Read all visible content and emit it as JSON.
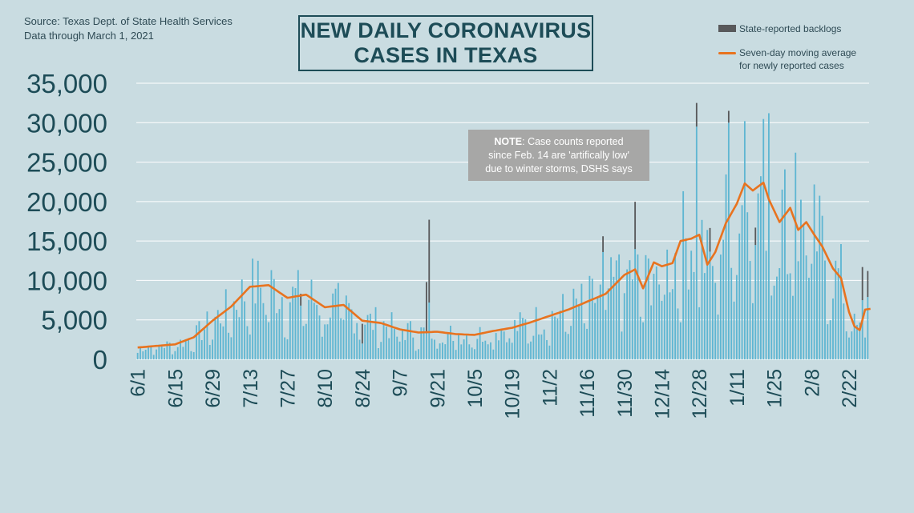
{
  "source": {
    "line1": "Source: Texas Dept. of State Health Services",
    "line2": "Data through  March 1, 2021"
  },
  "title": {
    "line1": "NEW DAILY CORONAVIRUS",
    "line2": "CASES IN TEXAS"
  },
  "legend": {
    "backlog_label": "State-reported backlogs",
    "average_label_line1": "Seven-day moving average",
    "average_label_line2": "for newly reported cases"
  },
  "note": {
    "bold": "NOTE",
    "line1_rest": ": Case counts reported",
    "line2": "since Feb. 14 are 'artifically low'",
    "line3": "due to winter storms, DSHS says"
  },
  "colors": {
    "background": "#c9dce1",
    "bars": "#5fb6d2",
    "backlog": "#58595b",
    "average": "#e8731f",
    "axis_text": "#1d4c57",
    "grid": "#ffffff",
    "note_bg": "#a7a7a6"
  },
  "chart_data": {
    "type": "bar",
    "ylim": [
      0,
      35000
    ],
    "yticks": [
      0,
      5000,
      10000,
      15000,
      20000,
      25000,
      30000,
      35000
    ],
    "ytick_labels": [
      "0",
      "5,000",
      "10,000",
      "15,000",
      "20,000",
      "25,000",
      "30,000",
      "35,000"
    ],
    "xticks": [
      "6/1",
      "6/15",
      "6/29",
      "7/13",
      "7/27",
      "8/10",
      "8/24",
      "9/7",
      "9/21",
      "10/5",
      "10/19",
      "11/2",
      "11/16",
      "11/30",
      "12/14",
      "12/28",
      "1/11",
      "1/25",
      "2/8",
      "2/22"
    ],
    "days_shown": 274,
    "grid": "horizontal",
    "legend_position": "top-right",
    "average_anchors": [
      [
        0,
        1500
      ],
      [
        7,
        1700
      ],
      [
        14,
        1900
      ],
      [
        21,
        2800
      ],
      [
        28,
        4900
      ],
      [
        35,
        6700
      ],
      [
        42,
        9200
      ],
      [
        49,
        9400
      ],
      [
        56,
        7800
      ],
      [
        63,
        8200
      ],
      [
        70,
        6600
      ],
      [
        77,
        6900
      ],
      [
        84,
        4900
      ],
      [
        91,
        4600
      ],
      [
        98,
        3800
      ],
      [
        105,
        3400
      ],
      [
        112,
        3500
      ],
      [
        119,
        3200
      ],
      [
        126,
        3100
      ],
      [
        133,
        3600
      ],
      [
        140,
        4000
      ],
      [
        147,
        4700
      ],
      [
        154,
        5500
      ],
      [
        161,
        6300
      ],
      [
        168,
        7300
      ],
      [
        175,
        8300
      ],
      [
        182,
        10700
      ],
      [
        186,
        11400
      ],
      [
        189,
        9000
      ],
      [
        193,
        12300
      ],
      [
        196,
        11800
      ],
      [
        200,
        12200
      ],
      [
        203,
        15000
      ],
      [
        207,
        15300
      ],
      [
        210,
        15800
      ],
      [
        213,
        12000
      ],
      [
        216,
        13600
      ],
      [
        220,
        17300
      ],
      [
        224,
        19700
      ],
      [
        227,
        22300
      ],
      [
        230,
        21400
      ],
      [
        234,
        22400
      ],
      [
        236,
        20300
      ],
      [
        240,
        17400
      ],
      [
        244,
        19200
      ],
      [
        247,
        16400
      ],
      [
        250,
        17400
      ],
      [
        253,
        15800
      ],
      [
        256,
        14300
      ],
      [
        260,
        11500
      ],
      [
        263,
        10300
      ],
      [
        266,
        6000
      ],
      [
        268,
        4200
      ],
      [
        270,
        3700
      ],
      [
        272,
        6300
      ],
      [
        274,
        6400
      ]
    ],
    "noise_amplitude": 0.45,
    "spikes": [
      [
        109,
        17700
      ],
      [
        108,
        9800
      ],
      [
        236,
        31200
      ],
      [
        209,
        32500
      ],
      [
        221,
        31500
      ],
      [
        227,
        30200
      ],
      [
        174,
        15600
      ],
      [
        180,
        13300
      ],
      [
        246,
        26200
      ],
      [
        261,
        12500
      ],
      [
        271,
        11700
      ],
      [
        273,
        11200
      ]
    ],
    "backlogs": [
      [
        109,
        10500
      ],
      [
        108,
        6500
      ],
      [
        209,
        3000
      ],
      [
        174,
        2000
      ],
      [
        186,
        4000
      ],
      [
        214,
        3000
      ],
      [
        221,
        1500
      ],
      [
        231,
        2200
      ],
      [
        84,
        2500
      ],
      [
        61,
        1500
      ],
      [
        186,
        2000
      ],
      [
        271,
        4200
      ],
      [
        273,
        3300
      ]
    ]
  }
}
